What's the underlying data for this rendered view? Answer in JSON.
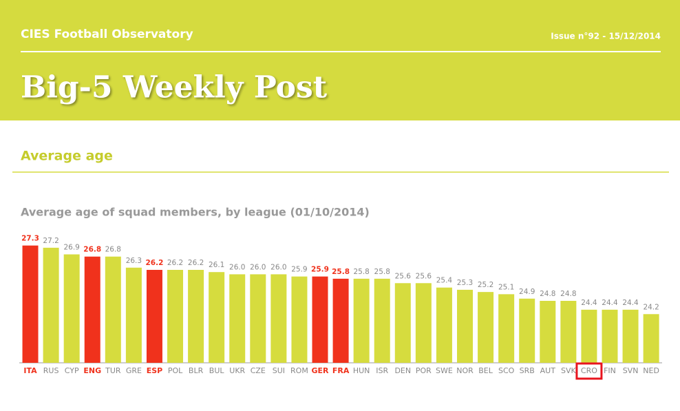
{
  "header": {
    "brand": "CIES Football Observatory",
    "issue": "Issue n°92 - 15/12/2014",
    "title": "Big-5 Weekly Post",
    "section": "Average age"
  },
  "chart_data": {
    "type": "bar",
    "title": "Average age of squad members, by league (01/10/2014)",
    "categories": [
      "ITA",
      "RUS",
      "CYP",
      "ENG",
      "TUR",
      "GRE",
      "ESP",
      "POL",
      "BLR",
      "BUL",
      "UKR",
      "CZE",
      "SUI",
      "ROM",
      "GER",
      "FRA",
      "HUN",
      "ISR",
      "DEN",
      "POR",
      "SWE",
      "NOR",
      "BEL",
      "SCO",
      "SRB",
      "AUT",
      "SVK",
      "CRO",
      "FIN",
      "SVN",
      "NED"
    ],
    "values": [
      27.3,
      27.2,
      26.9,
      26.8,
      26.8,
      26.3,
      26.2,
      26.2,
      26.2,
      26.1,
      26.0,
      26.0,
      26.0,
      25.9,
      25.9,
      25.8,
      25.8,
      25.8,
      25.6,
      25.6,
      25.4,
      25.3,
      25.2,
      25.1,
      24.9,
      24.8,
      24.8,
      24.4,
      24.4,
      24.4,
      24.2
    ],
    "value_labels": [
      "27.3",
      "27.2",
      "26.9",
      "26.8",
      "26.8",
      "26.3",
      "26.2",
      "26.2",
      "26.2",
      "26.1",
      "26.0",
      "26.0",
      "26.0",
      "25.9",
      "25.9",
      "25.8",
      "25.8",
      "25.8",
      "25.6",
      "25.6",
      "25.4",
      "25.3",
      "25.2",
      "25.1",
      "24.9",
      "24.8",
      "24.8",
      "24.4",
      "24.4",
      "24.4",
      "24.2"
    ],
    "colors": [
      "#f0321c",
      "#d6dc3e",
      "#d6dc3e",
      "#f0321c",
      "#d6dc3e",
      "#d6dc3e",
      "#f0321c",
      "#d6dc3e",
      "#d6dc3e",
      "#d6dc3e",
      "#d6dc3e",
      "#d6dc3e",
      "#d6dc3e",
      "#d6dc3e",
      "#f0321c",
      "#f0321c",
      "#d6dc3e",
      "#d6dc3e",
      "#d6dc3e",
      "#d6dc3e",
      "#d6dc3e",
      "#d6dc3e",
      "#d6dc3e",
      "#d6dc3e",
      "#d6dc3e",
      "#d6dc3e",
      "#d6dc3e",
      "#d6dc3e",
      "#d6dc3e",
      "#d6dc3e",
      "#d6dc3e"
    ],
    "highlight": "CRO",
    "ylim": [
      22,
      27.6
    ]
  }
}
